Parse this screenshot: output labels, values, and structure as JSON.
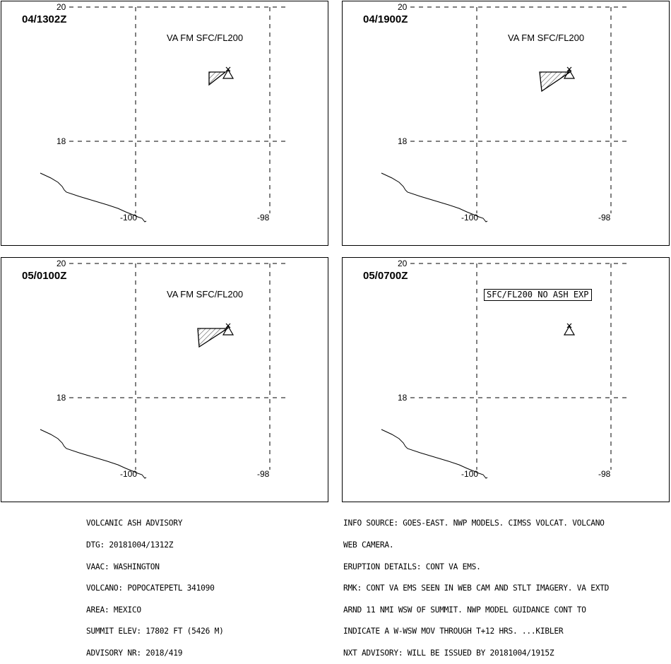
{
  "panels": [
    {
      "time": "04/1302Z",
      "label": "VA FM SFC/FL200",
      "label_boxed": false,
      "has_ash_polygon": true
    },
    {
      "time": "04/1900Z",
      "label": "VA FM SFC/FL200",
      "label_boxed": false,
      "has_ash_polygon": true
    },
    {
      "time": "05/0100Z",
      "label": "VA FM SFC/FL200",
      "label_boxed": false,
      "has_ash_polygon": true
    },
    {
      "time": "05/0700Z",
      "label": "SFC/FL200 NO ASH EXP",
      "label_boxed": true,
      "has_ash_polygon": false
    }
  ],
  "grid_labels": {
    "lat_top": "20",
    "lat_mid": "18",
    "lon_left": "-100",
    "lon_right": "-98"
  },
  "advisory": {
    "lines": [
      "VOLCANIC ASH ADVISORY",
      "DTG: 20181004/1312Z",
      "VAAC: WASHINGTON",
      "VOLCANO: POPOCATEPETL 341090",
      "AREA: MEXICO",
      "SUMMIT ELEV: 17802 FT (5426 M)",
      "ADVISORY NR: 2018/419"
    ]
  },
  "info": {
    "lines": [
      "INFO SOURCE: GOES-EAST. NWP MODELS. CIMSS VOLCAT. VOLCANO",
      "WEB CAMERA.",
      "ERUPTION DETAILS: CONT VA EMS.",
      "RMK: CONT VA EMS SEEN IN WEB CAM AND STLT IMAGERY. VA EXTD",
      "ARND 11 NMI WSW OF SUMMIT. NWP MODEL GUIDANCE CONT TO",
      "INDICATE A W-WSW MOV THROUGH T+12 HRS. ...KIBLER",
      "NXT ADVISORY: WILL BE ISSUED BY 20181004/1915Z"
    ]
  },
  "colors": {
    "line": "#000000",
    "background": "#ffffff"
  }
}
